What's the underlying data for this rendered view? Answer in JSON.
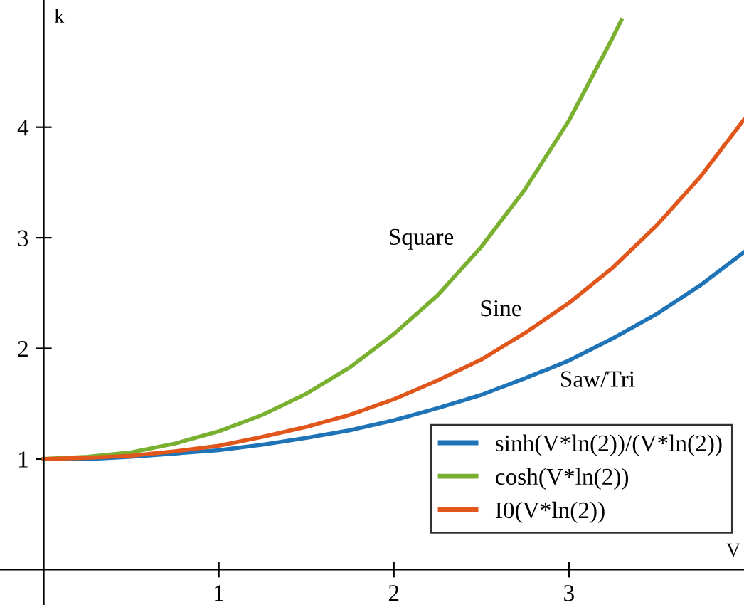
{
  "chart_data": {
    "type": "line",
    "xlabel": "V",
    "ylabel": "k",
    "x": [
      0,
      0.25,
      0.5,
      0.75,
      1,
      1.25,
      1.5,
      1.75,
      2,
      2.25,
      2.5,
      2.75,
      3,
      3.25,
      3.5,
      3.75,
      4
    ],
    "series": [
      {
        "name": "sinh(V*ln(2))/(V*ln(2))",
        "color": "#1f74b8",
        "values": [
          1.0,
          1.0,
          1.02,
          1.05,
          1.08,
          1.13,
          1.19,
          1.26,
          1.35,
          1.46,
          1.58,
          1.73,
          1.89,
          2.09,
          2.31,
          2.57,
          2.87
        ]
      },
      {
        "name": "cosh(V*ln(2))",
        "color": "#7ab030",
        "x": [
          0,
          0.25,
          0.5,
          0.75,
          1,
          1.25,
          1.5,
          1.75,
          2,
          2.25,
          2.5,
          2.75,
          3,
          3.25,
          3.3
        ],
        "values": [
          1.0,
          1.02,
          1.06,
          1.14,
          1.25,
          1.4,
          1.59,
          1.83,
          2.13,
          2.48,
          2.92,
          3.44,
          4.06,
          4.81,
          4.97
        ]
      },
      {
        "name": "I0(V*ln(2))",
        "color": "#e0561b",
        "values": [
          1.0,
          1.01,
          1.03,
          1.07,
          1.12,
          1.2,
          1.29,
          1.4,
          1.54,
          1.71,
          1.9,
          2.14,
          2.41,
          2.73,
          3.11,
          3.55,
          4.07
        ]
      }
    ],
    "annotations": [
      "Square",
      "Sine",
      "Saw/Tri"
    ],
    "xlim": [
      -0.25,
      4.0
    ],
    "ylim": [
      -0.32,
      5.15
    ],
    "xticks": [
      1,
      2,
      3
    ],
    "yticks": [
      1,
      2,
      3,
      4
    ],
    "grid": false,
    "legend": "bottom right",
    "marker": "none",
    "line_style": "solid"
  }
}
